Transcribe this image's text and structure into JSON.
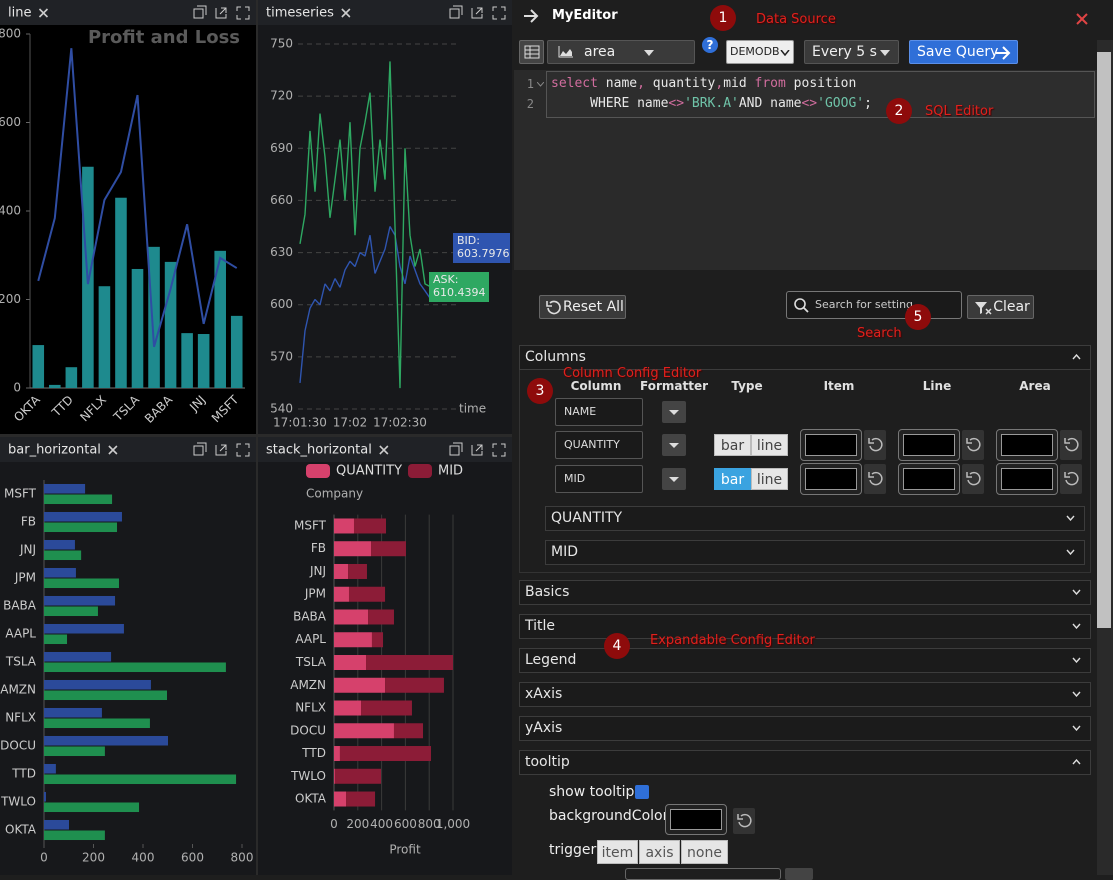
{
  "chart_data": [
    {
      "panel_title": "line",
      "type": "combo",
      "title": "Profit and Loss",
      "categories": [
        "OKTA",
        null,
        "TTD",
        null,
        "NFLX",
        null,
        "TSLA",
        null,
        "BABA",
        null,
        "JNJ",
        null,
        "MSFT"
      ],
      "series": [
        {
          "type": "bar",
          "color": "#1e8a8e",
          "values": [
            97,
            7,
            47,
            500,
            230,
            430,
            269,
            319,
            285,
            124,
            122,
            310,
            163
          ]
        },
        {
          "type": "line",
          "color": "#2f4da3",
          "values": [
            242,
            384,
            768,
            235,
            425,
            488,
            662,
            93,
            224,
            370,
            145,
            294,
            271
          ]
        }
      ],
      "ylim": [
        0,
        800
      ],
      "yticks": [
        0,
        200,
        400,
        600,
        800
      ]
    },
    {
      "panel_title": "timeseries",
      "type": "line",
      "x_label": "time",
      "categories": [
        "17:01:30",
        null,
        null,
        null,
        null,
        null,
        null,
        null,
        null,
        null,
        "17:02",
        null,
        null,
        null,
        null,
        null,
        null,
        null,
        null,
        null,
        "17:02:30",
        null,
        null,
        null,
        null,
        null,
        null
      ],
      "series": [
        {
          "name": "BID:",
          "color": "#2f55b0",
          "values": [
            555,
            585,
            598,
            603,
            600,
            612,
            608,
            615,
            610,
            620,
            625,
            622,
            630,
            628,
            640,
            618,
            625,
            632,
            645,
            640,
            622,
            612,
            628,
            620,
            612,
            608,
            603.7976
          ]
        },
        {
          "name": "ASK:",
          "color": "#2ea862",
          "values": [
            635,
            652,
            700,
            665,
            710,
            685,
            650,
            672,
            695,
            660,
            705,
            640,
            690,
            705,
            722,
            665,
            695,
            672,
            740,
            645,
            552,
            690,
            640,
            622,
            632,
            612,
            610.4394
          ]
        }
      ],
      "ylim": [
        540,
        750
      ],
      "yticks": [
        540,
        570,
        600,
        630,
        660,
        690,
        720,
        750
      ],
      "grid": true
    },
    {
      "panel_title": "bar_horizontal",
      "type": "bar",
      "orientation": "horizontal",
      "categories": [
        "MSFT",
        "FB",
        "JNJ",
        "JPM",
        "BABA",
        "AAPL",
        "TSLA",
        "AMZN",
        "NFLX",
        "DOCU",
        "TTD",
        "TWLO",
        "OKTA"
      ],
      "series": [
        {
          "color": "#2b4a9a",
          "values": [
            166,
            315,
            125,
            129,
            287,
            323,
            271,
            432,
            234,
            501,
            48,
            8,
            101
          ]
        },
        {
          "color": "#1f8f4f",
          "values": [
            275,
            295,
            150,
            303,
            218,
            93,
            735,
            497,
            428,
            246,
            776,
            384,
            246
          ]
        }
      ],
      "xlim": [
        0,
        800
      ],
      "xticks": [
        0,
        200,
        400,
        600,
        800
      ]
    },
    {
      "panel_title": "stack_horizontal",
      "type": "bar",
      "orientation": "horizontal",
      "stacked": true,
      "legend": "top",
      "y_label": "Company",
      "x_label": "Profit",
      "categories": [
        "MSFT",
        "FB",
        "JNJ",
        "JPM",
        "BABA",
        "AAPL",
        "TSLA",
        "AMZN",
        "NFLX",
        "DOCU",
        "TTD",
        "TWLO",
        "OKTA"
      ],
      "series": [
        {
          "name": "QUANTITY",
          "color": "#d6416c",
          "values": [
            168,
            311,
            118,
            126,
            286,
            319,
            269,
            429,
            227,
            504,
            50,
            8,
            101
          ]
        },
        {
          "name": "MID",
          "color": "#8c1c37",
          "values": [
            269,
            294,
            159,
            303,
            218,
            93,
            731,
            495,
            428,
            244,
            765,
            387,
            244
          ]
        }
      ],
      "xlim": [
        0,
        1000
      ],
      "xticks": [
        0,
        200,
        400,
        600,
        800,
        {
          "value": 1000,
          "label": "1,000"
        }
      ],
      "grid": true
    }
  ],
  "editor": {
    "title": "MyEditor",
    "chart_type": "area",
    "help": "?",
    "datasource": "DEMODB",
    "refresh": "Every 5 s",
    "save": "Save Query",
    "code": {
      "line_numbers": [
        1,
        2
      ],
      "lines": [
        "select name, quantity,mid from position",
        "     WHERE name<>'BRK.A'AND name<>'GOOG';"
      ]
    },
    "annotations": [
      {
        "number": 1,
        "label": "Data Source"
      },
      {
        "number": 2,
        "label": "SQL Editor"
      },
      {
        "number": 3,
        "label": "Column Config Editor"
      },
      {
        "number": 4,
        "label": "Expandable Config Editor"
      },
      {
        "number": 5,
        "label": "Search"
      }
    ],
    "reset": "Reset All",
    "search_placeholder": "Search for setting",
    "clear": "Clear",
    "columns": {
      "title": "Columns",
      "headers": [
        "Column",
        "Formatter",
        "Type",
        "Item",
        "Line",
        "Area"
      ],
      "rows": [
        {
          "name": "NAME"
        },
        {
          "name": "QUANTITY",
          "types": [
            "bar",
            "line"
          ]
        },
        {
          "name": "MID",
          "types": [
            "bar",
            "line"
          ],
          "selected": "bar"
        }
      ],
      "collapsed": [
        "QUANTITY",
        "MID"
      ]
    },
    "sections": [
      "Basics",
      "Title",
      "Legend",
      "xAxis",
      "yAxis"
    ],
    "tooltip": {
      "title": "tooltip",
      "show": "show tooltip",
      "checked": true,
      "background": "backgroundColor",
      "trigger": "trigger",
      "options": [
        "item",
        "axis",
        "none"
      ]
    }
  }
}
